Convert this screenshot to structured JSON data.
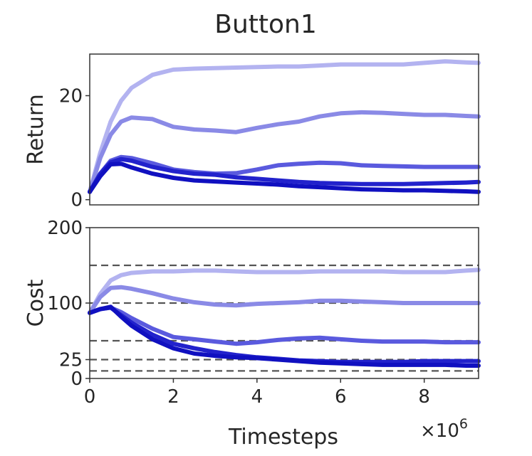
{
  "chart_data": {
    "type": "line",
    "title": "Button1",
    "xlabel": "Timesteps",
    "x_multiplier": "×10",
    "x_multiplier_exp": "6",
    "xlim": [
      0,
      9.3
    ],
    "xticks": [
      0,
      2,
      4,
      6,
      8
    ],
    "xtick_labels": [
      "0",
      "2",
      "4",
      "6",
      "8"
    ],
    "grid": false,
    "legend": "none",
    "x": [
      0,
      0.25,
      0.5,
      0.75,
      1,
      1.5,
      2,
      2.5,
      3,
      3.5,
      4,
      4.5,
      5,
      5.5,
      6,
      6.5,
      7,
      7.5,
      8,
      8.5,
      9,
      9.3
    ],
    "colors": [
      "#b3b3f0",
      "#8a8ae6",
      "#5a5ade",
      "#2222cc",
      "#1010c0"
    ],
    "panels": [
      {
        "ylabel": "Return",
        "ylim": [
          -1,
          28
        ],
        "yticks": [
          0,
          20
        ],
        "ytick_labels": [
          "0",
          "20"
        ],
        "series": [
          {
            "values": [
              1.5,
              9,
              15,
              19,
              21.5,
              24,
              25,
              25.2,
              25.3,
              25.4,
              25.5,
              25.6,
              25.6,
              25.8,
              26,
              26,
              26,
              26,
              26.3,
              26.6,
              26.4,
              26.3
            ]
          },
          {
            "values": [
              1.5,
              8,
              12.5,
              15,
              15.8,
              15.5,
              14,
              13.5,
              13.3,
              13,
              13.8,
              14.5,
              15,
              16,
              16.6,
              16.8,
              16.7,
              16.5,
              16.3,
              16.3,
              16.1,
              16
            ]
          },
          {
            "values": [
              1.5,
              5,
              7.5,
              8.2,
              8,
              7,
              5.8,
              5.3,
              5,
              5.1,
              5.8,
              6.6,
              6.9,
              7.1,
              7.0,
              6.6,
              6.5,
              6.4,
              6.3,
              6.3,
              6.3,
              6.3
            ]
          },
          {
            "values": [
              1.5,
              5,
              7.2,
              7.8,
              7.5,
              6.3,
              5.5,
              5,
              4.8,
              4.3,
              4.0,
              3.7,
              3.4,
              3.2,
              3.1,
              3.0,
              3.0,
              3.0,
              3.1,
              3.2,
              3.3,
              3.4
            ]
          },
          {
            "values": [
              1.5,
              4.5,
              6.8,
              6.9,
              6.2,
              5,
              4.2,
              3.7,
              3.5,
              3.3,
              3.1,
              2.9,
              2.6,
              2.4,
              2.2,
              2.0,
              1.9,
              1.8,
              1.8,
              1.7,
              1.6,
              1.5
            ]
          }
        ]
      },
      {
        "ylabel": "Cost",
        "ylim": [
          0,
          200
        ],
        "yticks": [
          0,
          25,
          100,
          200
        ],
        "ytick_labels": [
          "0",
          "25",
          "100",
          "200"
        ],
        "thresholds": [
          10,
          25,
          50,
          100,
          150
        ],
        "series": [
          {
            "values": [
              87,
              112,
              130,
              137,
              140,
              142,
              142,
              143,
              143,
              142,
              141,
              141,
              141,
              142,
              142,
              142,
              142,
              141,
              141,
              141,
              143,
              144
            ]
          },
          {
            "values": [
              87,
              108,
              120,
              121,
              119,
              113,
              106,
              101,
              98,
              97,
              99,
              100,
              101,
              103,
              103,
              102,
              101,
              100,
              100,
              100,
              100,
              100
            ]
          },
          {
            "values": [
              87,
              92,
              94,
              88,
              80,
              66,
              55,
              52,
              49,
              46,
              48,
              51,
              53,
              54,
              52,
              50,
              49,
              49,
              49,
              48,
              48,
              48
            ]
          },
          {
            "values": [
              87,
              92,
              94,
              84,
              74,
              58,
              46,
              40,
              35,
              31,
              28,
              26,
              24,
              23,
              22,
              22,
              22,
              22,
              23,
              23,
              23,
              23
            ]
          },
          {
            "values": [
              87,
              92,
              95,
              82,
              70,
              52,
              40,
              33,
              30,
              28,
              27,
              25,
              23,
              21,
              20,
              19,
              18,
              18,
              18,
              18,
              17,
              17
            ]
          }
        ]
      }
    ]
  }
}
